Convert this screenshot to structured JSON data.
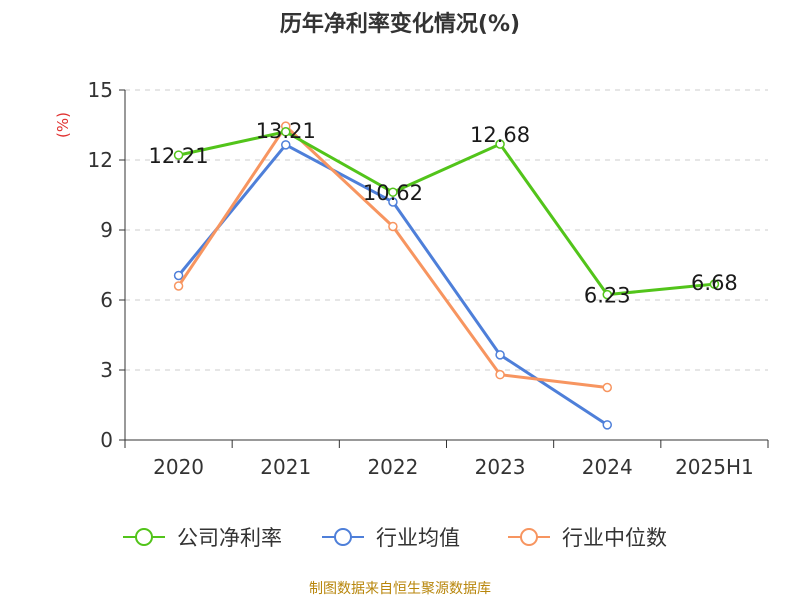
{
  "chart_data": {
    "type": "line",
    "title": "历年净利率变化情况(%)",
    "ylabel": "(%)",
    "ylim": [
      0,
      15
    ],
    "yticks": [
      0,
      3,
      6,
      9,
      12,
      15
    ],
    "grid": true,
    "legend_position": "bottom",
    "categories": [
      "2020",
      "2021",
      "2022",
      "2023",
      "2024",
      "2025H1"
    ],
    "series": [
      {
        "name": "公司净利率",
        "color": "#52c41a",
        "values": [
          12.21,
          13.21,
          10.62,
          12.68,
          6.23,
          6.68
        ],
        "labels": [
          "12.21",
          "13.21",
          "10.62",
          "12.68",
          "6.23",
          "6.68"
        ]
      },
      {
        "name": "行业均值",
        "color": "#4e7fd9",
        "values": [
          7.05,
          12.65,
          10.2,
          3.65,
          0.65,
          null
        ]
      },
      {
        "name": "行业中位数",
        "color": "#f79560",
        "values": [
          6.6,
          13.45,
          9.15,
          2.8,
          2.25,
          null
        ]
      }
    ]
  },
  "footer": "制图数据来自恒生聚源数据库"
}
